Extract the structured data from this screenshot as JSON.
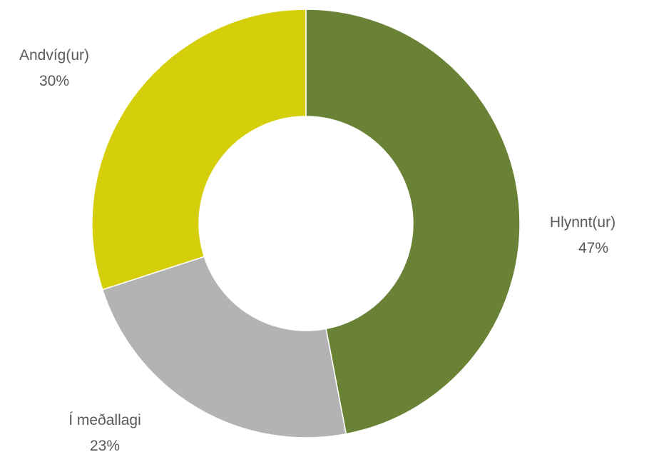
{
  "chart_data": {
    "type": "pie",
    "variant": "donut",
    "title": "",
    "slices": [
      {
        "label": "Hlynnt(ur)",
        "value": 47,
        "value_label": "47%",
        "color": "#6a8236"
      },
      {
        "label": "Í meðallagi",
        "value": 23,
        "value_label": "23%",
        "color": "#b3b3b3"
      },
      {
        "label": "Andvíg(ur)",
        "value": 30,
        "value_label": "30%",
        "color": "#d4cf0a"
      }
    ],
    "start_angle": "12 o'clock",
    "direction": "clockwise",
    "legend": "none",
    "labels": "outside, category and percentage"
  }
}
